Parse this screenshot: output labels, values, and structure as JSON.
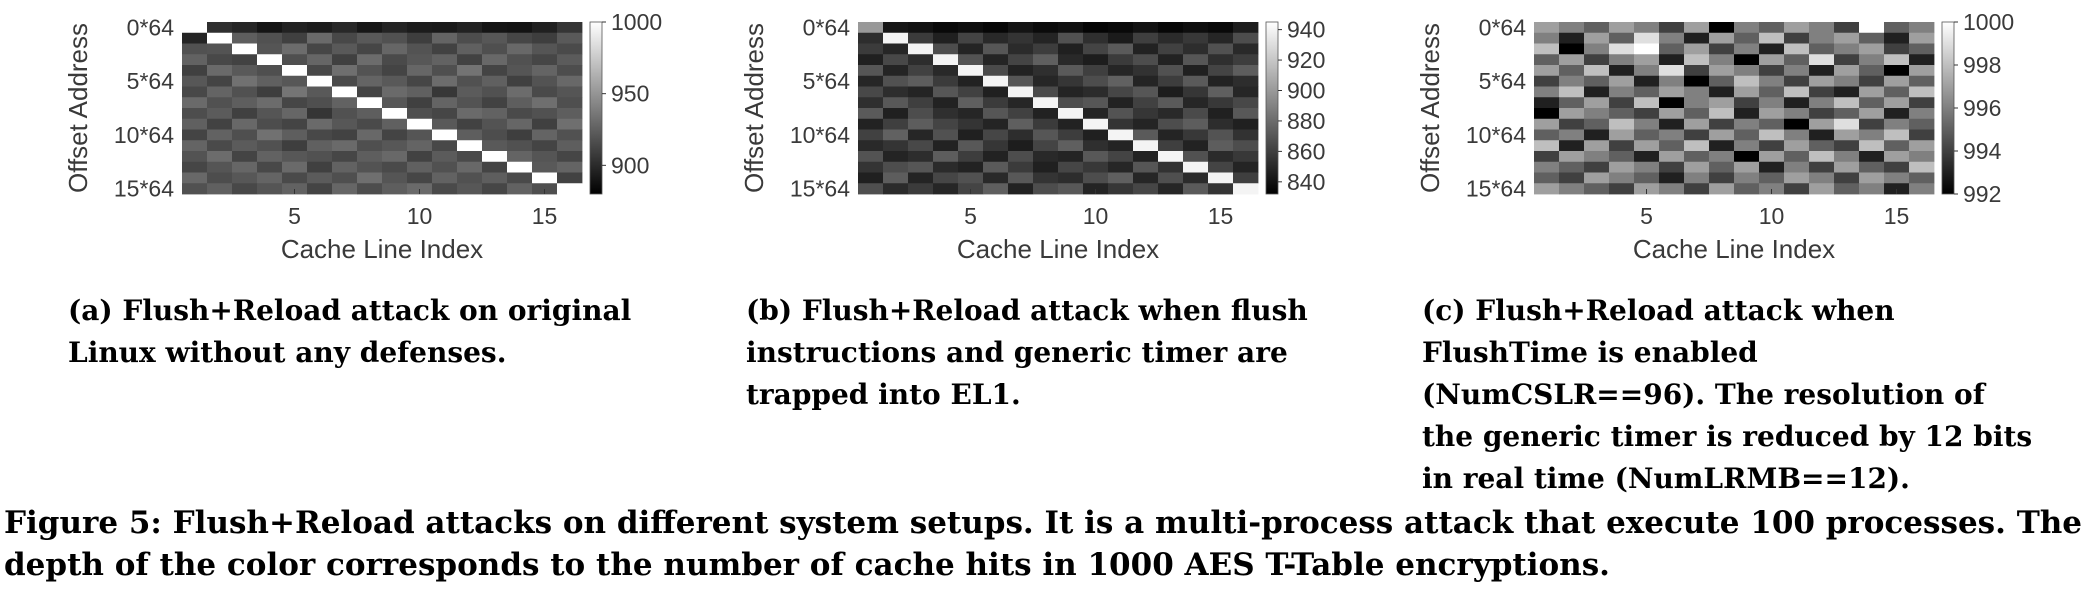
{
  "chart_data": [
    {
      "type": "heatmap",
      "xlabel": "Cache Line Index",
      "ylabel": "Offset Address",
      "xticks": [
        5,
        10,
        15
      ],
      "yticks": [
        "0*64",
        "5*64",
        "10*64",
        "15*64"
      ],
      "colorbar": {
        "min": 880,
        "max": 1000,
        "ticks": [
          900,
          950,
          1000
        ]
      },
      "grid": false,
      "colormap": "gray",
      "x": [
        1,
        2,
        3,
        4,
        5,
        6,
        7,
        8,
        9,
        10,
        11,
        12,
        13,
        14,
        15,
        16
      ],
      "y": [
        0,
        1,
        2,
        3,
        4,
        5,
        6,
        7,
        8,
        9,
        10,
        11,
        12,
        13,
        14,
        15
      ],
      "values": [
        [
          1000,
          902,
          898,
          890,
          896,
          893,
          899,
          891,
          897,
          893,
          892,
          896,
          890,
          889,
          895,
          905
        ],
        [
          897,
          1000,
          924,
          918,
          910,
          930,
          914,
          922,
          918,
          909,
          927,
          916,
          921,
          913,
          909,
          922
        ],
        [
          918,
          919,
          1000,
          920,
          931,
          913,
          922,
          913,
          928,
          919,
          911,
          925,
          917,
          929,
          920,
          915
        ],
        [
          926,
          914,
          911,
          1000,
          917,
          928,
          910,
          931,
          915,
          921,
          926,
          911,
          929,
          918,
          913,
          923
        ],
        [
          910,
          930,
          922,
          917,
          1000,
          914,
          932,
          919,
          912,
          928,
          917,
          934,
          912,
          920,
          927,
          916
        ],
        [
          921,
          912,
          933,
          925,
          921,
          1000,
          915,
          927,
          922,
          913,
          931,
          918,
          925,
          910,
          919,
          929
        ],
        [
          914,
          927,
          918,
          909,
          935,
          922,
          1000,
          912,
          930,
          925,
          906,
          923,
          918,
          931,
          915,
          920
        ],
        [
          930,
          918,
          924,
          931,
          913,
          917,
          926,
          1000,
          921,
          910,
          927,
          919,
          911,
          924,
          932,
          917
        ],
        [
          916,
          923,
          910,
          920,
          928,
          905,
          918,
          924,
          1000,
          917,
          913,
          930,
          926,
          915,
          918,
          924
        ],
        [
          925,
          911,
          929,
          916,
          912,
          930,
          921,
          915,
          925,
          1000,
          922,
          911,
          919,
          928,
          910,
          932
        ],
        [
          912,
          926,
          917,
          933,
          924,
          914,
          911,
          929,
          912,
          920,
          1000,
          924,
          916,
          909,
          927,
          918
        ],
        [
          927,
          915,
          923,
          918,
          909,
          925,
          930,
          917,
          921,
          927,
          914,
          1000,
          922,
          918,
          912,
          924
        ],
        [
          919,
          931,
          912,
          926,
          921,
          918,
          913,
          924,
          929,
          911,
          923,
          915,
          1000,
          927,
          920,
          913
        ],
        [
          913,
          920,
          928,
          914,
          930,
          910,
          926,
          919,
          915,
          925,
          918,
          929,
          912,
          1000,
          922,
          927
        ],
        [
          929,
          916,
          921,
          927,
          915,
          923,
          917,
          932,
          920,
          913,
          926,
          918,
          924,
          915,
          1000,
          911
        ],
        [
          918,
          925,
          914,
          920,
          926,
          912,
          928,
          916,
          924,
          930,
          915,
          921,
          913,
          926,
          917,
          1000
        ]
      ]
    },
    {
      "type": "heatmap",
      "xlabel": "Cache Line Index",
      "ylabel": "Offset Address",
      "xticks": [
        5,
        10,
        15
      ],
      "yticks": [
        "0*64",
        "5*64",
        "10*64",
        "15*64"
      ],
      "colorbar": {
        "min": 832,
        "max": 945,
        "ticks": [
          840,
          860,
          880,
          900,
          920,
          940
        ]
      },
      "grid": false,
      "colormap": "gray",
      "x": [
        1,
        2,
        3,
        4,
        5,
        6,
        7,
        8,
        9,
        10,
        11,
        12,
        13,
        14,
        15,
        16
      ],
      "y": [
        0,
        1,
        2,
        3,
        4,
        5,
        6,
        7,
        8,
        9,
        10,
        11,
        12,
        13,
        14,
        15
      ],
      "values": [
        [
          900,
          842,
          840,
          836,
          838,
          835,
          841,
          837,
          839,
          834,
          836,
          840,
          835,
          838,
          836,
          845
        ],
        [
          852,
          940,
          858,
          846,
          862,
          850,
          855,
          848,
          868,
          853,
          844,
          860,
          851,
          857,
          849,
          866
        ],
        [
          858,
          849,
          940,
          866,
          848,
          870,
          851,
          859,
          846,
          862,
          872,
          847,
          861,
          852,
          868,
          850
        ],
        [
          846,
          864,
          852,
          940,
          869,
          848,
          862,
          874,
          850,
          845,
          858,
          866,
          847,
          870,
          853,
          859
        ],
        [
          870,
          848,
          861,
          850,
          940,
          865,
          847,
          853,
          872,
          860,
          849,
          854,
          868,
          846,
          862,
          873
        ],
        [
          849,
          868,
          873,
          858,
          847,
          940,
          870,
          849,
          856,
          866,
          875,
          848,
          859,
          872,
          847,
          852
        ],
        [
          864,
          852,
          848,
          870,
          861,
          846,
          940,
          865,
          848,
          851,
          863,
          870,
          845,
          856,
          874,
          849
        ],
        [
          853,
          871,
          860,
          847,
          874,
          858,
          849,
          940,
          866,
          870,
          847,
          861,
          872,
          849,
          857,
          864
        ],
        [
          872,
          846,
          866,
          853,
          849,
          870,
          861,
          847,
          940,
          848,
          869,
          856,
          850,
          865,
          846,
          871
        ],
        [
          847,
          860,
          873,
          862,
          855,
          848,
          874,
          858,
          847,
          940,
          855,
          848,
          866,
          873,
          852,
          846
        ],
        [
          861,
          875,
          849,
          868,
          846,
          863,
          852,
          870,
          859,
          846,
          940,
          872,
          848,
          857,
          869,
          854
        ],
        [
          850,
          855,
          864,
          847,
          871,
          856,
          845,
          862,
          874,
          853,
          848,
          940,
          860,
          847,
          873,
          866
        ],
        [
          869,
          848,
          852,
          873,
          859,
          847,
          866,
          850,
          848,
          871,
          862,
          847,
          940,
          868,
          851,
          857
        ],
        [
          855,
          866,
          870,
          851,
          847,
          872,
          858,
          846,
          863,
          857,
          849,
          870,
          854,
          940,
          862,
          848
        ],
        [
          846,
          873,
          848,
          863,
          868,
          850,
          871,
          855,
          852,
          866,
          874,
          849,
          867,
          851,
          940,
          860
        ],
        [
          867,
          851,
          858,
          849,
          862,
          874,
          847,
          866,
          871,
          848,
          856,
          863,
          849,
          872,
          855,
          940
        ]
      ]
    },
    {
      "type": "heatmap",
      "xlabel": "Cache Line Index",
      "ylabel": "Offset Address",
      "xticks": [
        5,
        10,
        15
      ],
      "yticks": [
        "0*64",
        "5*64",
        "10*64",
        "15*64"
      ],
      "colorbar": {
        "min": 992,
        "max": 1000,
        "ticks": [
          992,
          994,
          996,
          998,
          1000
        ]
      },
      "grid": false,
      "colormap": "gray",
      "x": [
        1,
        2,
        3,
        4,
        5,
        6,
        7,
        8,
        9,
        10,
        11,
        12,
        13,
        14,
        15,
        16
      ],
      "y": [
        0,
        1,
        2,
        3,
        4,
        5,
        6,
        7,
        8,
        9,
        10,
        11,
        12,
        13,
        14,
        15
      ],
      "values": [
        [
          997,
          996,
          995,
          997,
          996,
          994,
          997,
          992,
          996,
          995,
          997,
          996,
          994,
          1000,
          995,
          996
        ],
        [
          996,
          993,
          997,
          995,
          999,
          996,
          993,
          997,
          995,
          998,
          994,
          996,
          997,
          995,
          993,
          997
        ],
        [
          998,
          992,
          996,
          999,
          1000,
          995,
          997,
          994,
          996,
          993,
          998,
          995,
          996,
          997,
          994,
          995
        ],
        [
          995,
          997,
          994,
          996,
          997,
          993,
          998,
          996,
          992,
          997,
          995,
          999,
          994,
          996,
          998,
          993
        ],
        [
          997,
          995,
          998,
          993,
          996,
          999,
          994,
          997,
          996,
          994,
          996,
          993,
          997,
          995,
          992,
          997
        ],
        [
          994,
          996,
          995,
          997,
          993,
          996,
          992,
          995,
          998,
          996,
          994,
          997,
          996,
          994,
          997,
          995
        ],
        [
          996,
          998,
          993,
          996,
          995,
          997,
          996,
          993,
          997,
          995,
          998,
          994,
          993,
          997,
          995,
          998
        ],
        [
          993,
          995,
          997,
          994,
          998,
          992,
          996,
          997,
          994,
          996,
          993,
          996,
          998,
          995,
          997,
          994
        ],
        [
          992,
          997,
          996,
          995,
          994,
          997,
          995,
          998,
          993,
          997,
          996,
          994,
          995,
          997,
          993,
          996
        ],
        [
          997,
          994,
          995,
          998,
          996,
          993,
          997,
          994,
          996,
          995,
          992,
          997,
          999,
          994,
          996,
          995
        ],
        [
          995,
          996,
          993,
          997,
          995,
          996,
          994,
          997,
          995,
          998,
          996,
          993,
          997,
          996,
          998,
          994
        ],
        [
          998,
          993,
          997,
          994,
          997,
          995,
          998,
          993,
          996,
          994,
          997,
          995,
          994,
          998,
          995,
          997
        ],
        [
          994,
          997,
          996,
          995,
          993,
          997,
          995,
          996,
          992,
          997,
          995,
          998,
          996,
          993,
          997,
          996
        ],
        [
          996,
          995,
          994,
          997,
          996,
          994,
          997,
          995,
          997,
          993,
          996,
          994,
          997,
          995,
          994,
          998
        ],
        [
          995,
          994,
          997,
          996,
          995,
          993,
          996,
          994,
          996,
          995,
          997,
          996,
          994,
          997,
          996,
          995
        ],
        [
          997,
          996,
          995,
          994,
          997,
          996,
          994,
          997,
          995,
          996,
          994,
          997,
          995,
          996,
          993,
          996
        ]
      ]
    }
  ],
  "captions": {
    "a": "(a) Flush+Reload attack on original Linux without any defenses.",
    "b": "(b) Flush+Reload attack when flush instructions and generic timer are trapped into EL1.",
    "c": "(c) Flush+Reload attack when FlushTime is enabled (NumCSLR==96). The resolution of the generic timer is reduced by 12 bits in real time (NumLRMB==12).",
    "figure": "Figure 5: Flush+Reload attacks on different system setups. It is a multi-process attack that execute 100 processes. The depth of the color corresponds to the number of cache hits in 1000 AES T-Table encryptions."
  }
}
